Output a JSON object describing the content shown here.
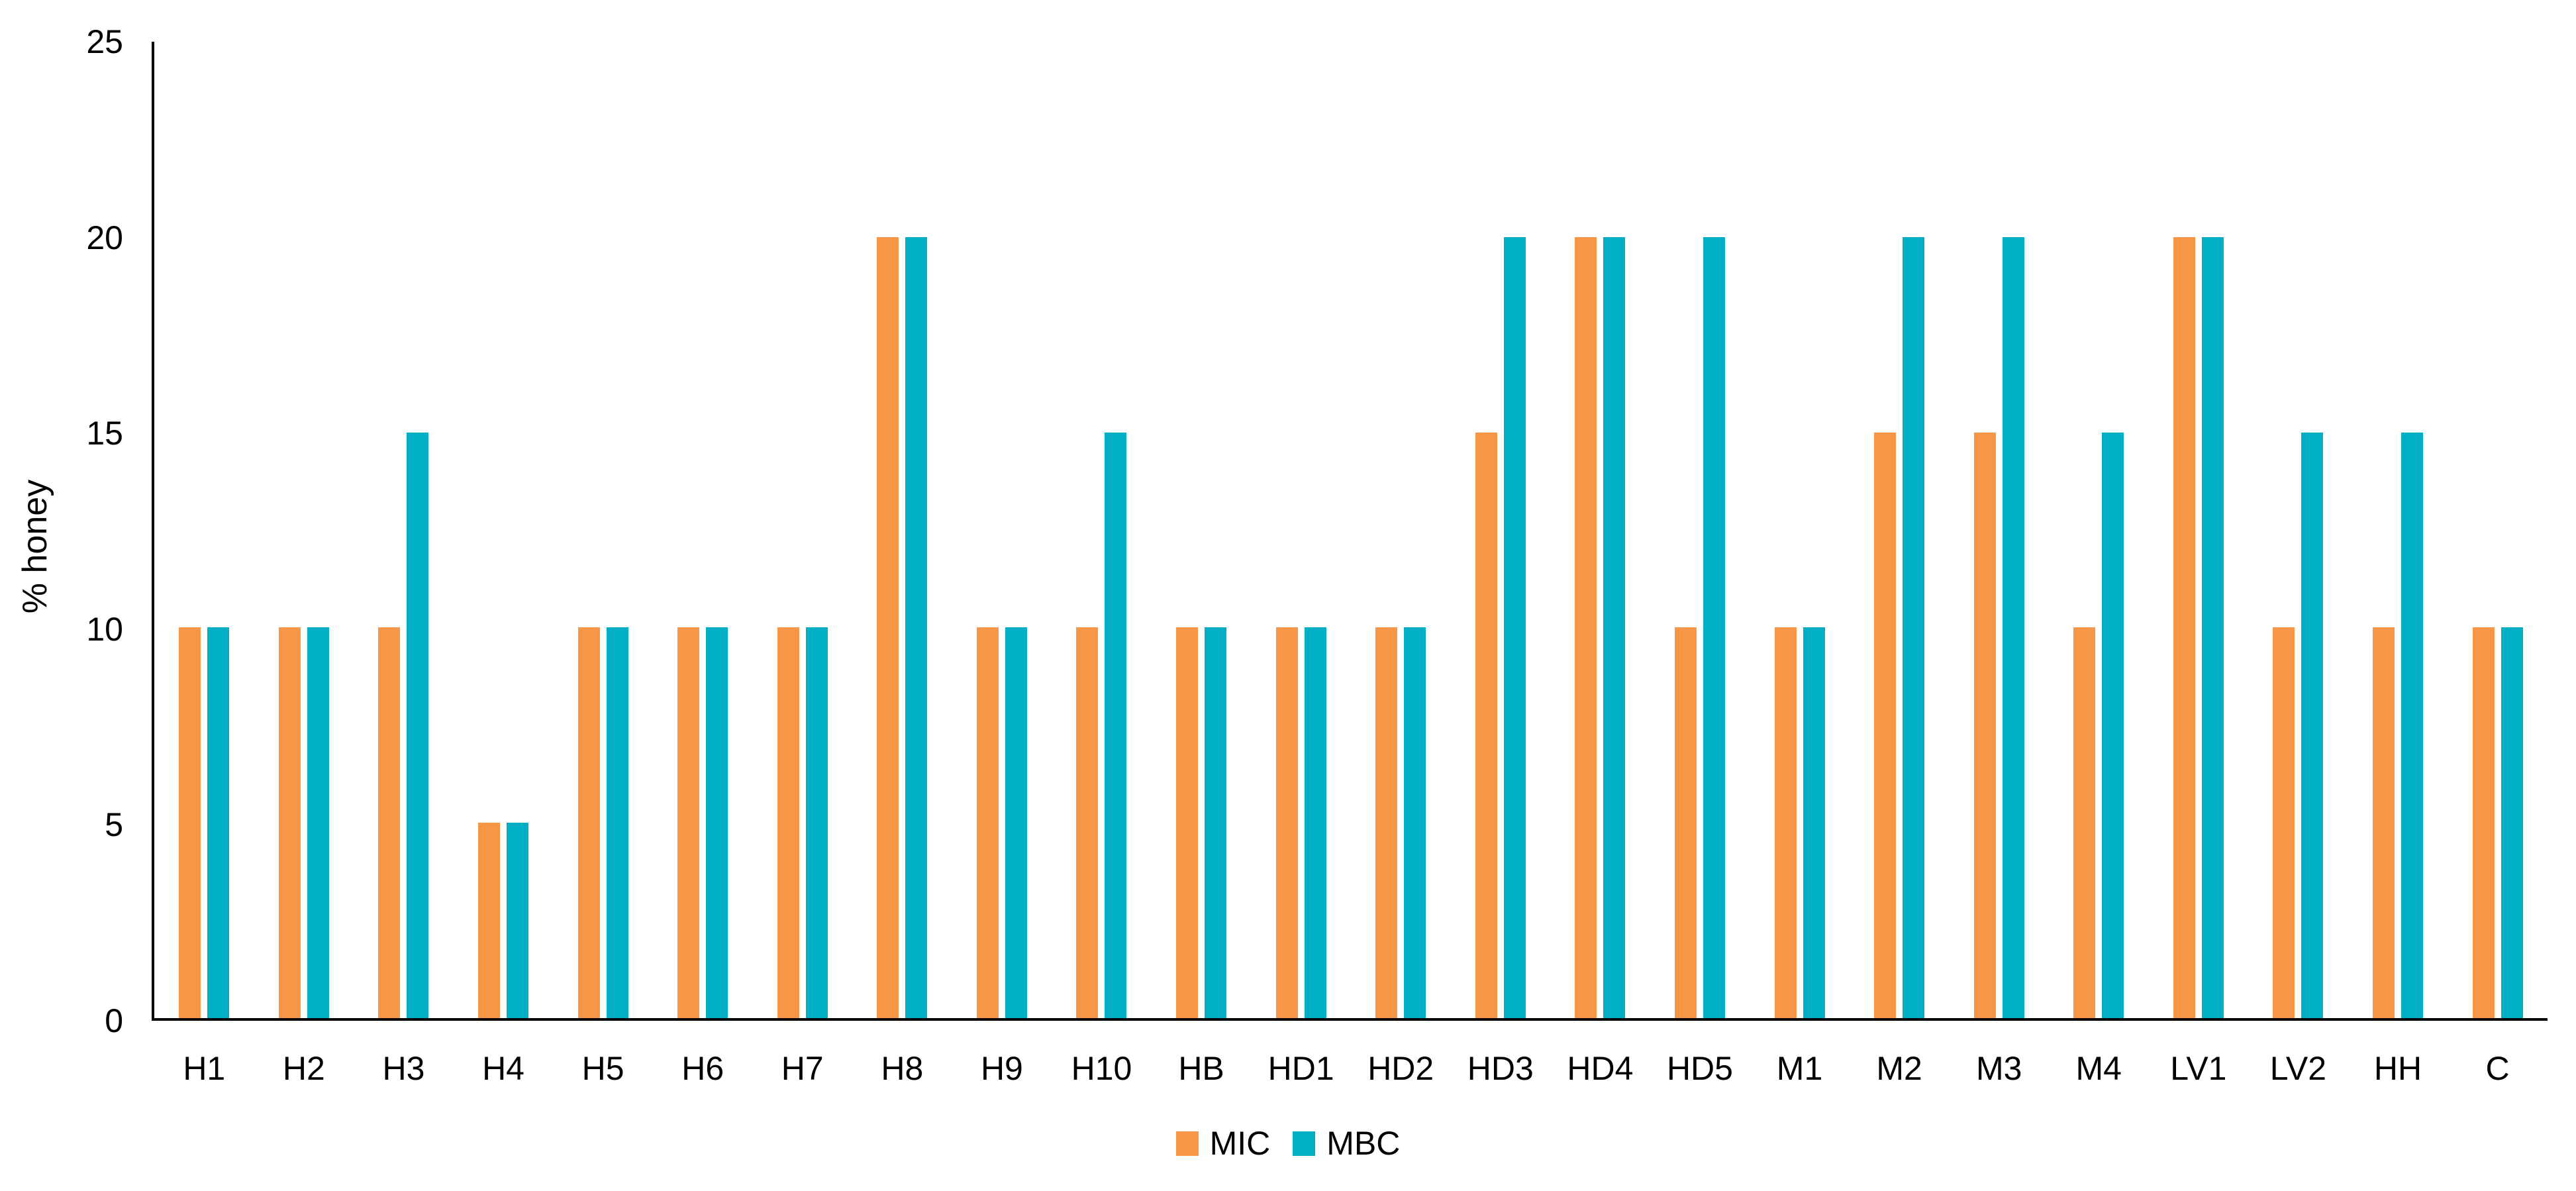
{
  "chart_data": {
    "type": "bar",
    "title": "",
    "xlabel": "",
    "ylabel": "% honey",
    "ylim": [
      0,
      25
    ],
    "yticks": [
      0,
      5,
      10,
      15,
      20,
      25
    ],
    "grid": false,
    "legend_position": "bottom-center",
    "categories": [
      "H1",
      "H2",
      "H3",
      "H4",
      "H5",
      "H6",
      "H7",
      "H8",
      "H9",
      "H10",
      "HB",
      "HD1",
      "HD2",
      "HD3",
      "HD4",
      "HD5",
      "M1",
      "M2",
      "M3",
      "M4",
      "LV1",
      "LV2",
      "HH",
      "C"
    ],
    "series": [
      {
        "name": "MIC",
        "color": "#F79646",
        "values": [
          10,
          10,
          10,
          5,
          10,
          10,
          10,
          20,
          10,
          10,
          10,
          10,
          10,
          15,
          20,
          10,
          10,
          15,
          15,
          10,
          20,
          10,
          10,
          10
        ]
      },
      {
        "name": "MBC",
        "color": "#00AEC6",
        "values": [
          10,
          10,
          15,
          5,
          10,
          10,
          10,
          20,
          10,
          15,
          10,
          10,
          10,
          20,
          20,
          20,
          10,
          20,
          20,
          15,
          20,
          15,
          15,
          10
        ]
      }
    ],
    "axis_color": "#000000",
    "text_color": "#000000"
  }
}
